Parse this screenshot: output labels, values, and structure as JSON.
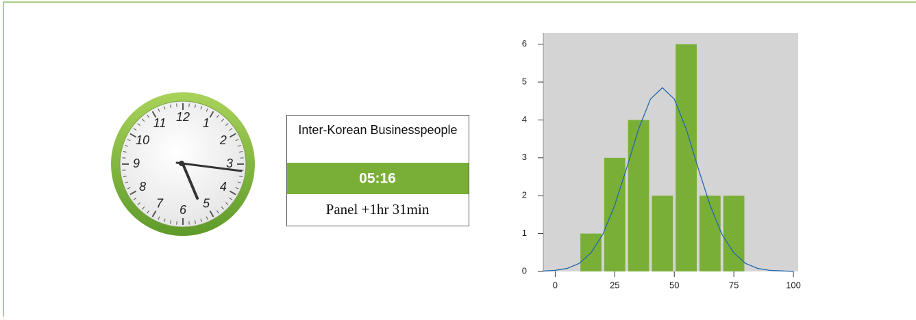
{
  "clock": {
    "numbers": [
      "12",
      "1",
      "2",
      "3",
      "4",
      "5",
      "6",
      "7",
      "8",
      "9",
      "10",
      "11"
    ]
  },
  "panel": {
    "title": "Inter-Korean Businesspeople",
    "time": "05:16",
    "subtitle": "Panel +1hr 31min"
  },
  "chart_data": {
    "type": "histogram",
    "bins": [
      10,
      20,
      30,
      40,
      50,
      60,
      70,
      80
    ],
    "values": [
      1,
      3,
      4,
      2,
      6,
      2,
      2
    ],
    "color": "#7aaf37",
    "curve": {
      "color": "#2166ac",
      "x": [
        -5,
        0,
        5,
        10,
        15,
        20,
        25,
        30,
        35,
        40,
        45,
        50,
        55,
        60,
        65,
        70,
        75,
        80,
        85,
        90,
        100
      ],
      "y": [
        0.01,
        0.03,
        0.08,
        0.21,
        0.49,
        0.98,
        1.75,
        2.73,
        3.76,
        4.55,
        4.85,
        4.55,
        3.76,
        2.73,
        1.75,
        0.98,
        0.49,
        0.21,
        0.08,
        0.03,
        0
      ]
    },
    "xlim": [
      -5,
      102
    ],
    "xticks": [
      0,
      25,
      50,
      75,
      100
    ],
    "ylim": [
      0,
      6.3
    ],
    "yticks": [
      0,
      1,
      2,
      3,
      4,
      5,
      6
    ]
  }
}
